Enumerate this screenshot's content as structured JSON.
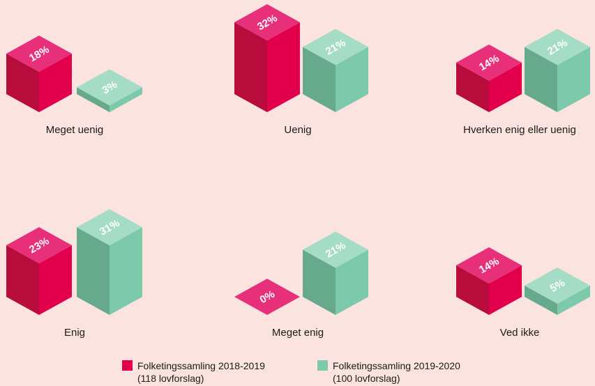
{
  "chart_data": {
    "type": "bar",
    "categories": [
      "Meget uenig",
      "Uenig",
      "Hverken enig eller uenig",
      "Enig",
      "Meget enig",
      "Ved ikke"
    ],
    "series": [
      {
        "name": "Folketingssamling 2018-2019",
        "detail": "(118 lovforslag)",
        "color": "#e2004d",
        "values": [
          18,
          32,
          14,
          23,
          0,
          14
        ],
        "value_labels": [
          "18%",
          "32%",
          "14%",
          "23%",
          "0%",
          "14%"
        ]
      },
      {
        "name": "Folketingssamling 2019-2020",
        "detail": "(100 lovforslag)",
        "color": "#7cc9ab",
        "values": [
          3,
          21,
          21,
          31,
          21,
          5
        ],
        "value_labels": [
          "3%",
          "21%",
          "21%",
          "31%",
          "21%",
          "5%"
        ]
      }
    ]
  }
}
